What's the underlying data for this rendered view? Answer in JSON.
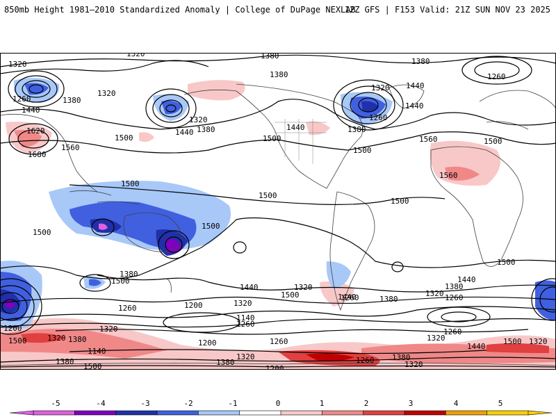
{
  "header": {
    "title": "850mb Height 1981–2010 Standardized Anomaly | College of DuPage NEXLAB",
    "run_info": "12Z GFS | F153 Valid: 21Z SUN NOV 23 2025"
  },
  "colorbar": {
    "ticks": [
      "-5",
      "-4",
      "-3",
      "-2",
      "-1",
      "0",
      "1",
      "2",
      "3",
      "4",
      "5"
    ],
    "colors": [
      "#e060e0",
      "#8000c0",
      "#2030a8",
      "#4060e0",
      "#a8c8f8",
      "#ffffff",
      "#f8c8c8",
      "#f08888",
      "#e04040",
      "#c00000",
      "#f0a000",
      "#f8d000"
    ]
  },
  "contour_labels": [
    {
      "id": "c1",
      "text": "1320"
    },
    {
      "id": "c2",
      "text": "1380"
    },
    {
      "id": "c3",
      "text": "1380"
    },
    {
      "id": "c4",
      "text": "1380"
    },
    {
      "id": "c5",
      "text": "1260"
    },
    {
      "id": "c6",
      "text": "1320"
    },
    {
      "id": "c7",
      "text": "1260"
    },
    {
      "id": "c8",
      "text": "1380"
    },
    {
      "id": "c9",
      "text": "1320"
    },
    {
      "id": "c10",
      "text": "1440"
    },
    {
      "id": "c11",
      "text": "1320"
    },
    {
      "id": "c12",
      "text": "1440"
    },
    {
      "id": "c13",
      "text": "1380"
    },
    {
      "id": "c14",
      "text": "1440"
    },
    {
      "id": "c15",
      "text": "1320"
    },
    {
      "id": "c16",
      "text": "1440"
    },
    {
      "id": "c17",
      "text": "1260"
    },
    {
      "id": "c18",
      "text": "1380"
    },
    {
      "id": "c19",
      "text": "1560"
    },
    {
      "id": "c20",
      "text": "1440"
    },
    {
      "id": "c21",
      "text": "1500"
    },
    {
      "id": "c22",
      "text": "1620"
    },
    {
      "id": "c23",
      "text": "1560"
    },
    {
      "id": "c24",
      "text": "1680"
    },
    {
      "id": "c25",
      "text": "1500"
    },
    {
      "id": "c26",
      "text": "1500"
    },
    {
      "id": "c27",
      "text": "1500"
    },
    {
      "id": "c28",
      "text": "1500"
    },
    {
      "id": "c29",
      "text": "1560"
    },
    {
      "id": "c30",
      "text": "1500"
    },
    {
      "id": "c31",
      "text": "1500"
    },
    {
      "id": "c32",
      "text": "1500"
    },
    {
      "id": "c33",
      "text": "1500"
    },
    {
      "id": "c34",
      "text": "1500"
    },
    {
      "id": "c35",
      "text": "1440"
    },
    {
      "id": "c36",
      "text": "1380"
    },
    {
      "id": "c37",
      "text": "1500"
    },
    {
      "id": "c38",
      "text": "1440"
    },
    {
      "id": "c39",
      "text": "1320"
    },
    {
      "id": "c40",
      "text": "1500"
    },
    {
      "id": "c41",
      "text": "1440"
    },
    {
      "id": "c42",
      "text": "1380"
    },
    {
      "id": "c43",
      "text": "1320"
    },
    {
      "id": "c44",
      "text": "1260"
    },
    {
      "id": "c45",
      "text": "1380"
    },
    {
      "id": "c46",
      "text": "1320"
    },
    {
      "id": "c47",
      "text": "1260"
    },
    {
      "id": "c48",
      "text": "1200"
    },
    {
      "id": "c49",
      "text": "1140"
    },
    {
      "id": "c50",
      "text": "1260"
    },
    {
      "id": "c51",
      "text": "1200"
    },
    {
      "id": "c52",
      "text": "1320"
    },
    {
      "id": "c53",
      "text": "1500"
    },
    {
      "id": "c54",
      "text": "1320"
    },
    {
      "id": "c55",
      "text": "1380"
    },
    {
      "id": "c56",
      "text": "1140"
    },
    {
      "id": "c57",
      "text": "1200"
    },
    {
      "id": "c58",
      "text": "1260"
    },
    {
      "id": "c59",
      "text": "1320"
    },
    {
      "id": "c60",
      "text": "1380"
    },
    {
      "id": "c61",
      "text": "1200"
    },
    {
      "id": "c62",
      "text": "1260"
    },
    {
      "id": "c63",
      "text": "1320"
    },
    {
      "id": "c64",
      "text": "1440"
    },
    {
      "id": "c65",
      "text": "1500"
    },
    {
      "id": "c66",
      "text": "1320"
    },
    {
      "id": "c67",
      "text": "1260"
    },
    {
      "id": "c68",
      "text": "1380"
    },
    {
      "id": "c69",
      "text": "1320"
    },
    {
      "id": "c70",
      "text": "1380"
    },
    {
      "id": "c71",
      "text": "1500"
    },
    {
      "id": "c72",
      "text": "1260"
    }
  ]
}
